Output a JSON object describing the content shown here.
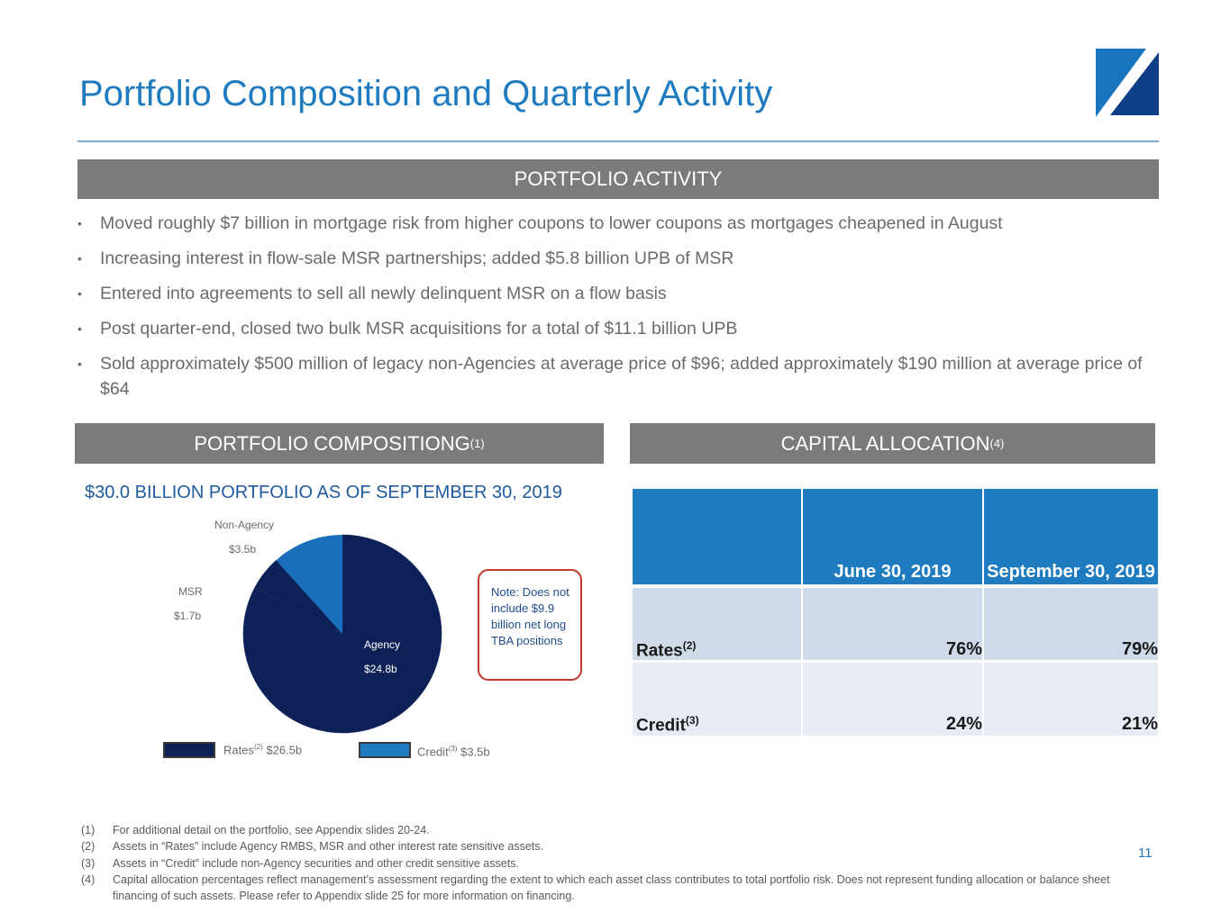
{
  "header": {
    "title": "Portfolio Composition and Quarterly Activity"
  },
  "activity": {
    "heading": "PORTFOLIO ACTIVITY",
    "bullets": [
      "Moved roughly $7 billion in mortgage risk from higher coupons to lower coupons as mortgages cheapened in August",
      "Increasing interest in flow-sale MSR partnerships; added $5.8 billion UPB of MSR",
      "Entered into agreements to sell all newly delinquent MSR on a flow basis",
      "Post quarter-end, closed two bulk MSR acquisitions for a total of $11.1 billion UPB",
      "Sold approximately $500 million of legacy non-Agencies at average price of $96; added approximately $190 million at average price of $64"
    ]
  },
  "composition": {
    "heading": "PORTFOLIO COMPOSITIONG",
    "heading_note": "(1)",
    "subtitle": "$30.0 BILLION PORTFOLIO AS OF SEPTEMBER 30, 2019",
    "note": "Note: Does not include $9.9 billion net long TBA positions",
    "legend": {
      "rates_label": "Rates",
      "rates_note": "(2)",
      "rates_value": "$26.5b",
      "credit_label": "Credit",
      "credit_note": "(3)",
      "credit_value": "$3.5b"
    }
  },
  "chart_data": {
    "type": "pie",
    "title": "$30.0 BILLION PORTFOLIO AS OF SEPTEMBER 30, 2019",
    "slices": [
      {
        "label": "Agency",
        "value_label": "$24.8b",
        "value": 24.8,
        "color": "#0d2157"
      },
      {
        "label": "MSR",
        "value_label": "$1.7b",
        "value": 1.7,
        "color": "#0d2157"
      },
      {
        "label": "Non-Agency",
        "value_label": "$3.5b",
        "value": 3.5,
        "color": "#1a6fbd"
      }
    ]
  },
  "capital": {
    "heading": "CAPITAL ALLOCATION",
    "heading_note": "(4)",
    "col1": "June 30, 2019",
    "col2": "September 30, 2019",
    "rows": [
      {
        "label": "Rates",
        "note": "(2)",
        "v1": "76%",
        "v2": "79%"
      },
      {
        "label": "Credit",
        "note": "(3)",
        "v1": "24%",
        "v2": "21%"
      }
    ]
  },
  "footnotes": [
    {
      "num": "(1)",
      "text": "For additional detail on the portfolio, see Appendix slides 20-24."
    },
    {
      "num": "(2)",
      "text": "Assets in “Rates” include Agency RMBS, MSR and other interest rate sensitive assets."
    },
    {
      "num": "(3)",
      "text": "Assets in “Credit” include non-Agency securities and other credit sensitive assets."
    },
    {
      "num": "(4)",
      "text": "Capital allocation percentages reflect management’s assessment regarding the extent to which each asset class contributes to total portfolio risk.  Does not represent funding allocation or balance sheet financing of such assets.  Please refer to Appendix slide 25 for more information on financing."
    }
  ],
  "page": {
    "number": "11"
  },
  "colors": {
    "accent": "#1f7bbf",
    "navy": "#0d2157",
    "bar_gray": "#7b7b7b",
    "note_border": "#c0392b"
  }
}
